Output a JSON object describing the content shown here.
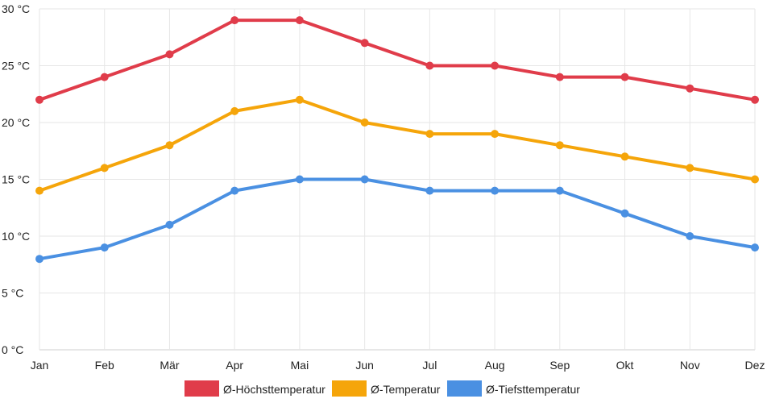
{
  "chart_data": {
    "type": "line",
    "categories": [
      "Jan",
      "Feb",
      "Mär",
      "Apr",
      "Mai",
      "Jun",
      "Jul",
      "Aug",
      "Sep",
      "Okt",
      "Nov",
      "Dez"
    ],
    "series": [
      {
        "name": "Ø-Höchsttemperatur",
        "color": "#e03c4a",
        "values": [
          22,
          24,
          26,
          29,
          29,
          27,
          25,
          25,
          24,
          24,
          23,
          22
        ]
      },
      {
        "name": "Ø-Temperatur",
        "color": "#f5a50a",
        "values": [
          14,
          16,
          18,
          21,
          22,
          20,
          19,
          19,
          18,
          17,
          16,
          15
        ]
      },
      {
        "name": "Ø-Tiefsttemperatur",
        "color": "#4a90e2",
        "values": [
          8,
          9,
          11,
          14,
          15,
          15,
          14,
          14,
          14,
          12,
          10,
          9
        ]
      }
    ],
    "y_ticks": [
      0,
      5,
      10,
      15,
      20,
      25,
      30
    ],
    "y_unit": "°C",
    "ylim": [
      0,
      30
    ],
    "grid": true,
    "legend": "bottom",
    "title": "",
    "xlabel": "",
    "ylabel": ""
  }
}
